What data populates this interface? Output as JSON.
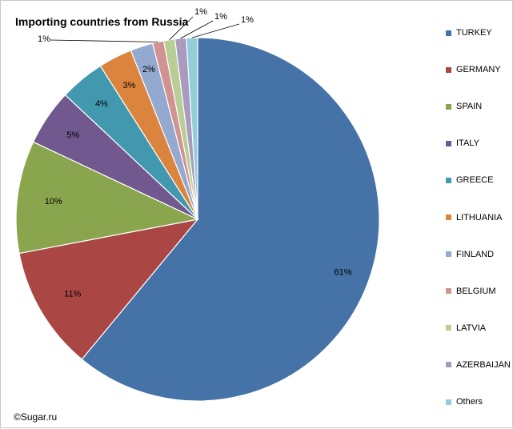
{
  "chart_data": {
    "type": "pie",
    "title": "Importing countries from Russia",
    "credit": "©Sugar.ru",
    "legend_position": "right",
    "slices": [
      {
        "name": "TURKEY",
        "value": 61,
        "label": "61%",
        "color": "#4572A7"
      },
      {
        "name": "GERMANY",
        "value": 11,
        "label": "11%",
        "color": "#AA4643"
      },
      {
        "name": "SPAIN",
        "value": 10,
        "label": "10%",
        "color": "#89A54E"
      },
      {
        "name": "ITALY",
        "value": 5,
        "label": "5%",
        "color": "#71588F"
      },
      {
        "name": "GREECE",
        "value": 4,
        "label": "4%",
        "color": "#4198AF"
      },
      {
        "name": "LITHUANIA",
        "value": 3,
        "label": "3%",
        "color": "#DB843D"
      },
      {
        "name": "FINLAND",
        "value": 2,
        "label": "2%",
        "color": "#93A9CF"
      },
      {
        "name": "BELGIUM",
        "value": 1,
        "label": "1%",
        "color": "#D19392"
      },
      {
        "name": "LATVIA",
        "value": 1,
        "label": "1%",
        "color": "#B9CD96"
      },
      {
        "name": "AZERBAIJAN",
        "value": 1,
        "label": "1%",
        "color": "#A99BBD"
      },
      {
        "name": "Others",
        "value": 1,
        "label": "1%",
        "color": "#92CDDC"
      }
    ]
  }
}
